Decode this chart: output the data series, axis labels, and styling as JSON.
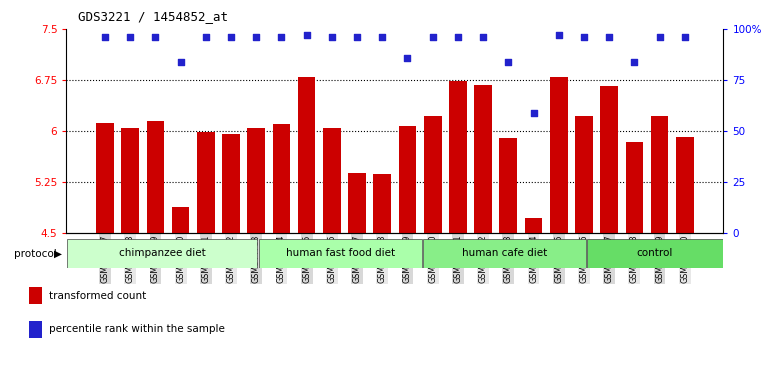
{
  "title": "GDS3221 / 1454852_at",
  "samples": [
    "GSM144707",
    "GSM144708",
    "GSM144709",
    "GSM144710",
    "GSM144711",
    "GSM144712",
    "GSM144713",
    "GSM144714",
    "GSM144715",
    "GSM144716",
    "GSM144717",
    "GSM144718",
    "GSM144719",
    "GSM144720",
    "GSM144721",
    "GSM144722",
    "GSM144723",
    "GSM144724",
    "GSM144725",
    "GSM144726",
    "GSM144727",
    "GSM144728",
    "GSM144729",
    "GSM144730"
  ],
  "bar_values": [
    6.12,
    6.05,
    6.15,
    4.88,
    5.98,
    5.95,
    6.05,
    6.1,
    6.79,
    6.04,
    5.38,
    5.37,
    6.08,
    6.22,
    6.74,
    6.68,
    5.9,
    4.72,
    6.79,
    6.22,
    6.67,
    5.84,
    6.22,
    5.92
  ],
  "percentile_values": [
    96,
    96,
    96,
    84,
    96,
    96,
    96,
    96,
    97,
    96,
    96,
    96,
    86,
    96,
    96,
    96,
    84,
    59,
    97,
    96,
    96,
    84,
    96,
    96
  ],
  "bar_color": "#cc0000",
  "dot_color": "#2222cc",
  "ylim_left": [
    4.5,
    7.5
  ],
  "ylim_right": [
    0,
    100
  ],
  "yticks_left": [
    4.5,
    5.25,
    6.0,
    6.75,
    7.5
  ],
  "ytick_labels_left": [
    "4.5",
    "5.25",
    "6",
    "6.75",
    "7.5"
  ],
  "yticks_right": [
    0,
    25,
    50,
    75,
    100
  ],
  "ytick_labels_right": [
    "0",
    "25",
    "50",
    "75",
    "100%"
  ],
  "hlines": [
    5.25,
    6.0,
    6.75
  ],
  "groups": [
    {
      "label": "chimpanzee diet",
      "start": 0,
      "end": 7,
      "color": "#ccffcc"
    },
    {
      "label": "human fast food diet",
      "start": 7,
      "end": 13,
      "color": "#aaffaa"
    },
    {
      "label": "human cafe diet",
      "start": 13,
      "end": 19,
      "color": "#88ee88"
    },
    {
      "label": "control",
      "start": 19,
      "end": 24,
      "color": "#66dd66"
    }
  ],
  "legend_items": [
    {
      "label": "transformed count",
      "color": "#cc0000"
    },
    {
      "label": "percentile rank within the sample",
      "color": "#2222cc"
    }
  ],
  "protocol_label": "protocol",
  "bar_width": 0.7
}
